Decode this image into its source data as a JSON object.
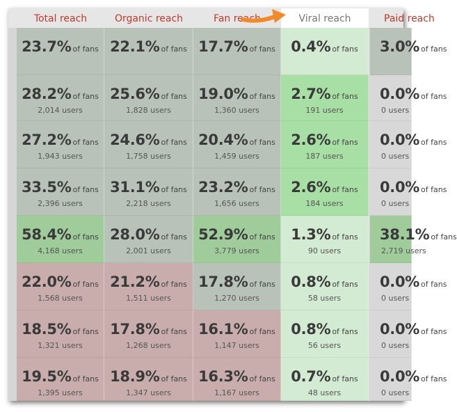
{
  "headers": [
    {
      "label": "Total reach"
    },
    {
      "label": "Organic reach"
    },
    {
      "label": "Fan reach"
    },
    {
      "label": "Viral reach"
    },
    {
      "label": "Paid reach"
    }
  ],
  "suffix": "of fans",
  "rows": [
    [
      {
        "pct": "23.7%",
        "users": ""
      },
      {
        "pct": "22.1%",
        "users": ""
      },
      {
        "pct": "17.7%",
        "users": ""
      },
      {
        "pct": "0.4%",
        "users": ""
      },
      {
        "pct": "3.0%",
        "users": ""
      }
    ],
    [
      {
        "pct": "28.2%",
        "users": "2,014 users"
      },
      {
        "pct": "25.6%",
        "users": "1,828 users"
      },
      {
        "pct": "19.0%",
        "users": "1,360 users"
      },
      {
        "pct": "2.7%",
        "users": "191 users"
      },
      {
        "pct": "0.0%",
        "users": "0 users"
      }
    ],
    [
      {
        "pct": "27.2%",
        "users": "1,943 users"
      },
      {
        "pct": "24.6%",
        "users": "1,758 users"
      },
      {
        "pct": "20.4%",
        "users": "1,459 users"
      },
      {
        "pct": "2.6%",
        "users": "187 users"
      },
      {
        "pct": "0.0%",
        "users": "0 users"
      }
    ],
    [
      {
        "pct": "33.5%",
        "users": "2,396 users"
      },
      {
        "pct": "31.1%",
        "users": "2,218 users"
      },
      {
        "pct": "23.2%",
        "users": "1,656 users"
      },
      {
        "pct": "2.6%",
        "users": "184 users"
      },
      {
        "pct": "0.0%",
        "users": "0 users"
      }
    ],
    [
      {
        "pct": "58.4%",
        "users": "4,168 users"
      },
      {
        "pct": "28.0%",
        "users": "2,001 users"
      },
      {
        "pct": "52.9%",
        "users": "3,779 users"
      },
      {
        "pct": "1.3%",
        "users": "90 users"
      },
      {
        "pct": "38.1%",
        "users": "2,719 users"
      }
    ],
    [
      {
        "pct": "22.0%",
        "users": "1,568 users"
      },
      {
        "pct": "21.2%",
        "users": "1,511 users"
      },
      {
        "pct": "17.8%",
        "users": "1,270 users"
      },
      {
        "pct": "0.8%",
        "users": "58 users"
      },
      {
        "pct": "0.0%",
        "users": "0 users"
      }
    ],
    [
      {
        "pct": "18.5%",
        "users": "1,321 users"
      },
      {
        "pct": "17.8%",
        "users": "1,268 users"
      },
      {
        "pct": "16.1%",
        "users": "1,147 users"
      },
      {
        "pct": "0.8%",
        "users": "56 users"
      },
      {
        "pct": "0.0%",
        "users": "0 users"
      }
    ],
    [
      {
        "pct": "19.5%",
        "users": "1,395 users"
      },
      {
        "pct": "18.9%",
        "users": "1,347 users"
      },
      {
        "pct": "16.3%",
        "users": "1,167 users"
      },
      {
        "pct": "0.7%",
        "users": "48 users"
      },
      {
        "pct": "0.0%",
        "users": "0 users"
      }
    ]
  ],
  "colors": {
    "header_text": "#c0392b",
    "viral_header_text": "#777777",
    "arrow": "#f08a2a",
    "gray_cell": "#b8c2b8",
    "green_cell": "#9fcc9a",
    "red_cell": "#c9acac",
    "viral_light": "#d3ead3",
    "viral_strong": "#a8dfa4",
    "paid_gray": "#d8d8d8"
  },
  "cell_shading": [
    [
      "gray",
      "gray",
      "gray",
      "viral_light",
      "gray"
    ],
    [
      "gray",
      "gray",
      "gray",
      "viral_strong",
      "paid_gray"
    ],
    [
      "gray",
      "gray",
      "gray",
      "viral_strong",
      "paid_gray"
    ],
    [
      "gray",
      "gray",
      "gray",
      "viral_strong",
      "paid_gray"
    ],
    [
      "green",
      "gray",
      "green",
      "viral_light",
      "green"
    ],
    [
      "red",
      "red",
      "gray",
      "viral_light",
      "paid_gray"
    ],
    [
      "red",
      "red",
      "red",
      "viral_light",
      "paid_gray"
    ],
    [
      "red",
      "red",
      "red",
      "viral_light",
      "paid_gray"
    ]
  ],
  "highlight_icon": "arrow-right-icon"
}
